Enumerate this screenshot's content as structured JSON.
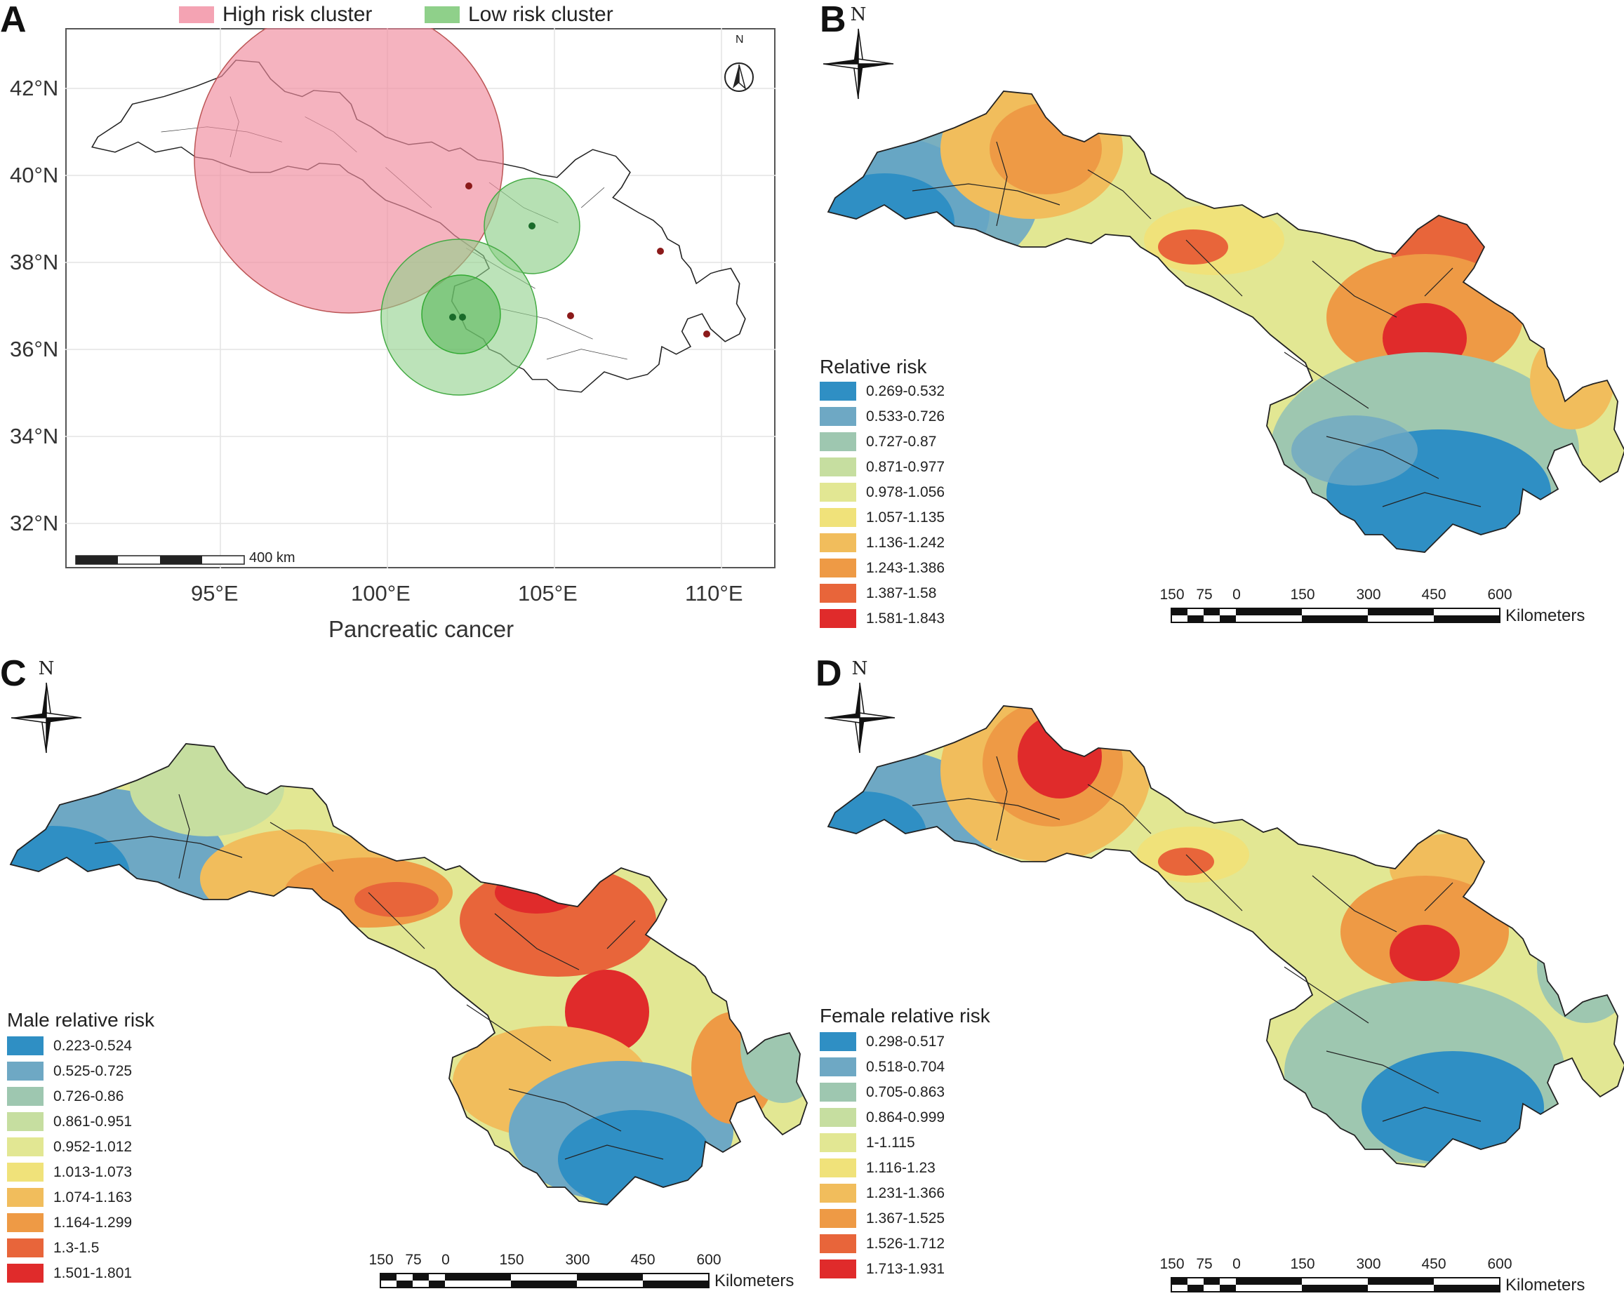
{
  "panels": {
    "A": {
      "letter": "A",
      "legend": [
        {
          "label": "High risk cluster",
          "color": "#f4a3b3"
        },
        {
          "label": "Low risk cluster",
          "color": "#8fd08a"
        }
      ],
      "y_ticks": [
        "42°N",
        "40°N",
        "38°N",
        "36°N",
        "34°N",
        "32°N"
      ],
      "x_ticks": [
        "95°E",
        "100°E",
        "105°E",
        "110°E"
      ],
      "xlabel": "Pancreatic cancer",
      "scale_label": "400 km",
      "north": "N"
    },
    "B": {
      "letter": "B",
      "north": "N",
      "legend_title": "Relative risk",
      "legend": [
        {
          "label": "0.269-0.532",
          "color": "#2f8fc4"
        },
        {
          "label": "0.533-0.726",
          "color": "#6ea8c4"
        },
        {
          "label": "0.727-0.87",
          "color": "#9ec7b0"
        },
        {
          "label": "0.871-0.977",
          "color": "#c6dea0"
        },
        {
          "label": "0.978-1.056",
          "color": "#e2e793"
        },
        {
          "label": "1.057-1.135",
          "color": "#f0e27a"
        },
        {
          "label": "1.136-1.242",
          "color": "#f1bd5c"
        },
        {
          "label": "1.243-1.386",
          "color": "#ee9a45"
        },
        {
          "label": "1.387-1.58",
          "color": "#e8653a"
        },
        {
          "label": "1.581-1.843",
          "color": "#e02b2b"
        }
      ],
      "scale_ticks": [
        "150",
        "75",
        "0",
        "150",
        "300",
        "450",
        "600"
      ],
      "scale_unit": "Kilometers"
    },
    "C": {
      "letter": "C",
      "north": "N",
      "legend_title": "Male relative risk",
      "legend": [
        {
          "label": "0.223-0.524",
          "color": "#2f8fc4"
        },
        {
          "label": "0.525-0.725",
          "color": "#6ea8c4"
        },
        {
          "label": "0.726-0.86",
          "color": "#9ec7b0"
        },
        {
          "label": "0.861-0.951",
          "color": "#c6dea0"
        },
        {
          "label": "0.952-1.012",
          "color": "#e2e793"
        },
        {
          "label": "1.013-1.073",
          "color": "#f0e27a"
        },
        {
          "label": "1.074-1.163",
          "color": "#f1bd5c"
        },
        {
          "label": "1.164-1.299",
          "color": "#ee9a45"
        },
        {
          "label": "1.3-1.5",
          "color": "#e8653a"
        },
        {
          "label": "1.501-1.801",
          "color": "#e02b2b"
        }
      ],
      "scale_ticks": [
        "150",
        "75",
        "0",
        "150",
        "300",
        "450",
        "600"
      ],
      "scale_unit": "Kilometers"
    },
    "D": {
      "letter": "D",
      "north": "N",
      "legend_title": "Female relative risk",
      "legend": [
        {
          "label": "0.298-0.517",
          "color": "#2f8fc4"
        },
        {
          "label": "0.518-0.704",
          "color": "#6ea8c4"
        },
        {
          "label": "0.705-0.863",
          "color": "#9ec7b0"
        },
        {
          "label": "0.864-0.999",
          "color": "#c6dea0"
        },
        {
          "label": "1-1.115",
          "color": "#e2e793"
        },
        {
          "label": "1.116-1.23",
          "color": "#f0e27a"
        },
        {
          "label": "1.231-1.366",
          "color": "#f1bd5c"
        },
        {
          "label": "1.367-1.525",
          "color": "#ee9a45"
        },
        {
          "label": "1.526-1.712",
          "color": "#e8653a"
        },
        {
          "label": "1.713-1.931",
          "color": "#e02b2b"
        }
      ],
      "scale_ticks": [
        "150",
        "75",
        "0",
        "150",
        "300",
        "450",
        "600"
      ],
      "scale_unit": "Kilometers"
    }
  }
}
